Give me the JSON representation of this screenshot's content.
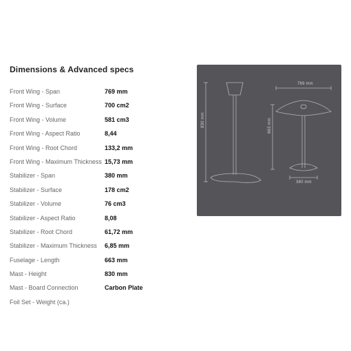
{
  "heading": "Dimensions & Advanced specs",
  "specs": [
    {
      "label": "Front Wing - Span",
      "value": "769 mm"
    },
    {
      "label": "Front Wing - Surface",
      "value": "700 cm2"
    },
    {
      "label": "Front Wing - Volume",
      "value": "581 cm3"
    },
    {
      "label": "Front Wing - Aspect Ratio",
      "value": "8,44"
    },
    {
      "label": "Front Wing - Root Chord",
      "value": "133,2 mm"
    },
    {
      "label": "Front Wing - Maximum Thickness",
      "value": "15,73 mm"
    },
    {
      "label": "Stabilizer - Span",
      "value": "380 mm"
    },
    {
      "label": "Stabilizer - Surface",
      "value": "178 cm2"
    },
    {
      "label": "Stabilizer - Volume",
      "value": "76 cm3"
    },
    {
      "label": "Stabilizer - Aspect Ratio",
      "value": "8,08"
    },
    {
      "label": "Stabilizer - Root Chord",
      "value": "61,72 mm"
    },
    {
      "label": "Stabilizer - Maximum Thickness",
      "value": "6,85 mm"
    },
    {
      "label": "Fuselage - Length",
      "value": "663 mm"
    },
    {
      "label": "Mast - Height",
      "value": "830 mm"
    },
    {
      "label": "Mast - Board Connection",
      "value": "Carbon Plate"
    },
    {
      "label": "Foil Set - Weight (ca.)",
      "value": ""
    }
  ],
  "diagram": {
    "bg": "#555459",
    "stroke": "#b6b5ba",
    "label_color": "#cecece",
    "label_fontsize": 6,
    "dim_769": "769 mm",
    "dim_663": "663 mm",
    "dim_830": "830 mm",
    "dim_380": "380 mm"
  }
}
